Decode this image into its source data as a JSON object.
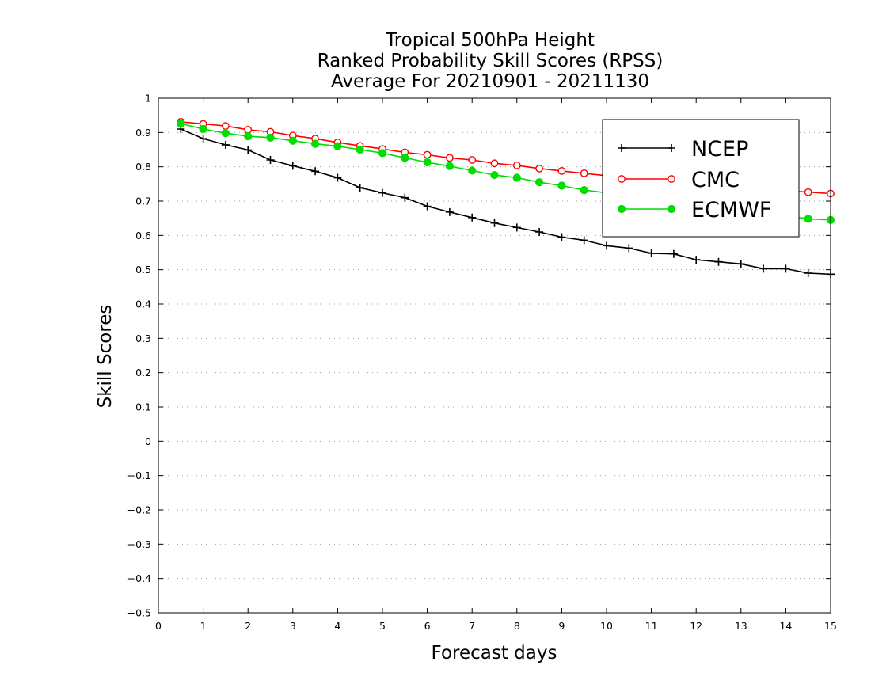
{
  "chart_data": {
    "type": "line",
    "title_lines": [
      "Tropical 500hPa Height",
      "Ranked Probability Skill Scores (RPSS)",
      "Average For 20210901 - 20211130"
    ],
    "xlabel": "Forecast days",
    "ylabel": "Skill Scores",
    "xlim": [
      0,
      15
    ],
    "ylim": [
      -0.5,
      1
    ],
    "x_ticks": [
      0,
      1,
      2,
      3,
      4,
      5,
      6,
      7,
      8,
      9,
      10,
      11,
      12,
      13,
      14,
      15
    ],
    "y_ticks": [
      -0.5,
      -0.4,
      -0.3,
      -0.2,
      -0.1,
      0,
      0.1,
      0.2,
      0.3,
      0.4,
      0.5,
      0.6,
      0.7,
      0.8,
      0.9,
      1
    ],
    "y_tick_labels": [
      "−0.5",
      "−0.4",
      "−0.3",
      "−0.2",
      "−0.1",
      "0",
      "0.1",
      "0.2",
      "0.3",
      "0.4",
      "0.5",
      "0.6",
      "0.7",
      "0.8",
      "0.9",
      "1"
    ],
    "grid": "horizontal dotted",
    "legend_position": "top-right",
    "x": [
      0.5,
      1,
      1.5,
      2,
      2.5,
      3,
      3.5,
      4,
      4.5,
      5,
      5.5,
      6,
      6.5,
      7,
      7.5,
      8,
      8.5,
      9,
      9.5,
      10,
      10.5,
      11,
      11.5,
      12,
      12.5,
      13,
      13.5,
      14,
      14.5,
      15
    ],
    "series": [
      {
        "name": "NCEP",
        "color": "#000000",
        "marker": "plus",
        "values": [
          0.91,
          0.882,
          0.864,
          0.849,
          0.82,
          0.803,
          0.787,
          0.768,
          0.739,
          0.724,
          0.71,
          0.685,
          0.668,
          0.652,
          0.636,
          0.623,
          0.61,
          0.595,
          0.586,
          0.57,
          0.563,
          0.548,
          0.546,
          0.529,
          0.523,
          0.517,
          0.503,
          0.503,
          0.49,
          0.487
        ]
      },
      {
        "name": "CMC",
        "color": "#ff0000",
        "marker": "open-circle",
        "values": [
          0.931,
          0.925,
          0.919,
          0.908,
          0.902,
          0.891,
          0.882,
          0.871,
          0.861,
          0.852,
          0.842,
          0.835,
          0.826,
          0.82,
          0.81,
          0.804,
          0.795,
          0.788,
          0.781,
          0.774,
          0.768,
          0.762,
          0.757,
          0.751,
          0.745,
          0.74,
          0.735,
          0.73,
          0.726,
          0.722
        ]
      },
      {
        "name": "ECMWF",
        "color": "#00dd00",
        "marker": "filled-circle",
        "values": [
          0.926,
          0.91,
          0.898,
          0.889,
          0.885,
          0.876,
          0.867,
          0.86,
          0.85,
          0.84,
          0.826,
          0.813,
          0.802,
          0.789,
          0.776,
          0.768,
          0.755,
          0.745,
          0.732,
          0.724,
          0.714,
          0.705,
          0.697,
          0.69,
          0.683,
          0.676,
          0.667,
          0.658,
          0.648,
          0.645
        ]
      }
    ]
  }
}
